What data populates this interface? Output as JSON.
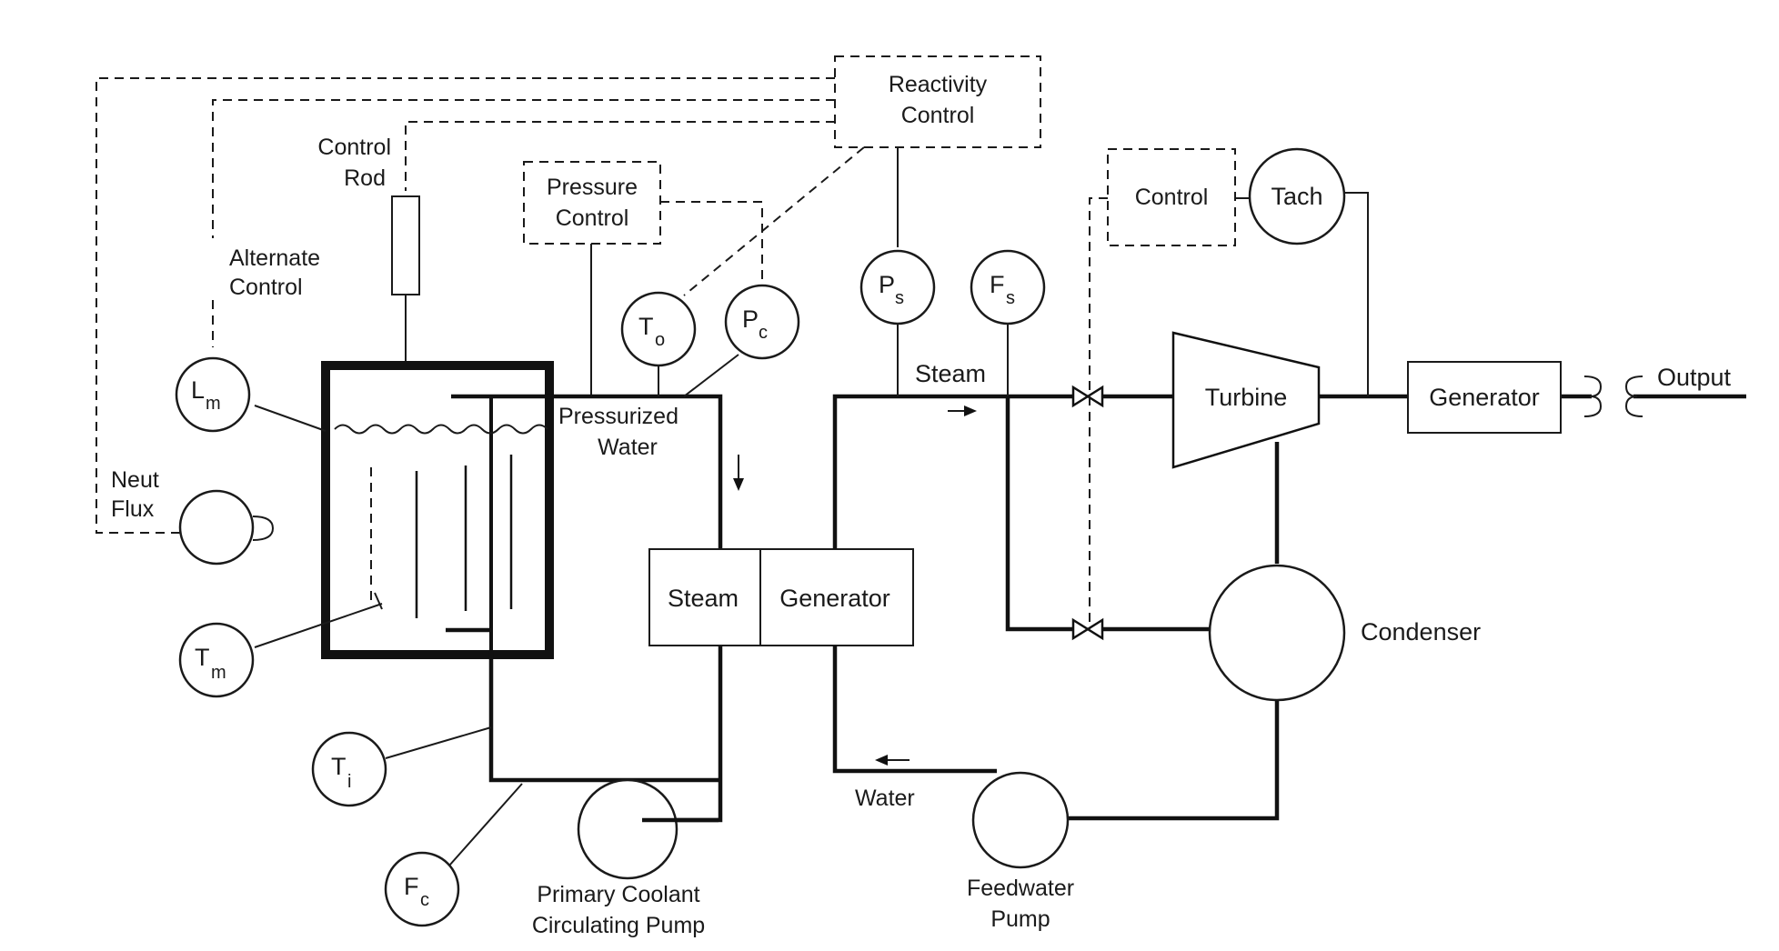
{
  "labels": {
    "reactivity_control_1": "Reactivity",
    "reactivity_control_2": "Control",
    "control_rod_1": "Control",
    "control_rod_2": "Rod",
    "pressure_control_1": "Pressure",
    "pressure_control_2": "Control",
    "alternate_control_1": "Alternate",
    "alternate_control_2": "Control",
    "neut_flux_1": "Neut",
    "neut_flux_2": "Flux",
    "pressurized_water_1": "Pressurized",
    "pressurized_water_2": "Water",
    "steam": "Steam",
    "steam_generator_1": "Steam",
    "steam_generator_2": "Generator",
    "water": "Water",
    "turbine": "Turbine",
    "generator": "Generator",
    "output": "Output",
    "control": "Control",
    "tach": "Tach",
    "condenser": "Condenser",
    "primary_pump_1": "Primary Coolant",
    "primary_pump_2": "Circulating Pump",
    "feedwater_pump_1": "Feedwater",
    "feedwater_pump_2": "Pump"
  },
  "sensors": {
    "lm": {
      "main": "L",
      "sub": "m"
    },
    "tm": {
      "main": "T",
      "sub": "m"
    },
    "to": {
      "main": "T",
      "sub": "o"
    },
    "pc": {
      "main": "P",
      "sub": "c"
    },
    "ps": {
      "main": "P",
      "sub": "s"
    },
    "fs": {
      "main": "F",
      "sub": "s"
    },
    "ti": {
      "main": "T",
      "sub": "i"
    },
    "fc": {
      "main": "F",
      "sub": "c"
    }
  }
}
